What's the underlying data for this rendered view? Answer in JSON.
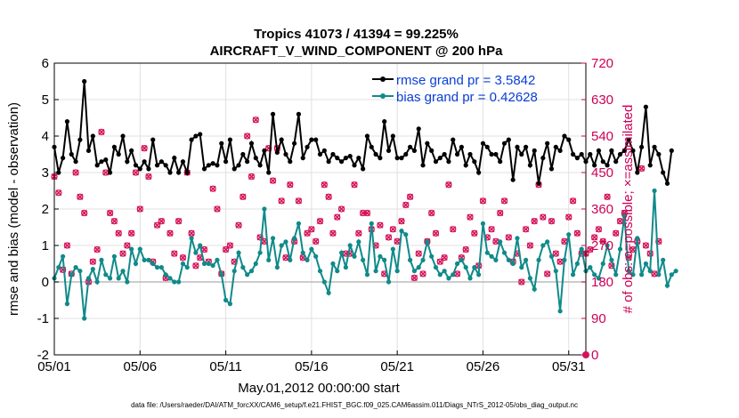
{
  "chart_data": {
    "type": "line",
    "title_line1": "Tropics 41073 / 41394 = 99.225%",
    "title_line2": "AIRCRAFT_V_WIND_COMPONENT @ 200 hPa",
    "xlabel": "May.01,2012 00:00:00 start",
    "ylabel": "rmse and bias (model - observation)",
    "ylabel_right": "# of obs: o=possible; ×=assimilated",
    "footnote": "data file: /Users/raeder/DAI/ATM_forcXX/CAM6_setup/f.e21.FHIST_BGC.f09_025.CAM6assim.011/Diags_NTrS_2012-05/obs_diag_output.nc",
    "x_range": [
      1,
      32
    ],
    "x_ticks": [
      1,
      6,
      11,
      16,
      21,
      26,
      31
    ],
    "x_tick_labels": [
      "05/01",
      "05/06",
      "05/11",
      "05/16",
      "05/21",
      "05/26",
      "05/31"
    ],
    "ylim": [
      -2,
      6
    ],
    "y_ticks": [
      -2,
      -1,
      0,
      1,
      2,
      3,
      4,
      5,
      6
    ],
    "y_tick_labels": [
      "-2",
      "-1",
      "0",
      "1",
      "2",
      "3",
      "4",
      "5",
      "6"
    ],
    "ylim_right": [
      0,
      720
    ],
    "y_ticks_right": [
      0,
      90,
      180,
      270,
      360,
      450,
      540,
      630,
      720
    ],
    "y_tick_labels_right": [
      "0",
      "90",
      "180",
      "270",
      "360",
      "450",
      "540",
      "630",
      "720"
    ],
    "series": [
      {
        "name": "rmse",
        "legend": "rmse grand pr = 3.5842",
        "color": "#000000",
        "step": 0.25,
        "start": 1.0,
        "values": [
          3.7,
          3.0,
          3.4,
          4.4,
          3.5,
          3.3,
          3.9,
          5.5,
          3.6,
          4.0,
          3.2,
          3.3,
          3.35,
          3.0,
          3.7,
          3.5,
          4.0,
          3.3,
          3.6,
          3.2,
          3.1,
          3.3,
          3.1,
          3.9,
          3.2,
          3.3,
          3.2,
          3.0,
          3.4,
          3.0,
          3.3,
          3.0,
          3.9,
          4.0,
          4.05,
          3.1,
          3.2,
          3.25,
          3.2,
          3.8,
          3.3,
          3.9,
          3.1,
          3.2,
          3.5,
          3.3,
          3.8,
          3.4,
          3.2,
          3.6,
          3.0,
          4.6,
          3.55,
          3.9,
          3.5,
          3.3,
          3.8,
          4.6,
          3.4,
          3.7,
          3.9,
          3.9,
          3.5,
          3.6,
          3.3,
          3.5,
          3.4,
          3.3,
          3.4,
          3.45,
          3.2,
          3.4,
          3.1,
          4.0,
          3.7,
          3.5,
          3.4,
          4.4,
          3.6,
          4.0,
          3.4,
          3.4,
          3.5,
          3.7,
          3.6,
          4.2,
          3.2,
          3.8,
          3.6,
          3.3,
          3.4,
          3.5,
          3.3,
          3.9,
          3.5,
          3.7,
          3.2,
          3.5,
          3.3,
          3.0,
          3.8,
          3.7,
          3.5,
          3.5,
          3.3,
          3.8,
          3.9,
          2.8,
          3.7,
          3.5,
          3.7,
          3.2,
          3.6,
          2.7,
          3.4,
          3.8,
          3.1,
          3.7,
          3.6,
          4.0,
          3.9,
          3.5,
          3.4,
          3.5,
          3.3,
          3.5,
          3.2,
          3.6,
          3.3,
          3.2,
          3.6,
          3.3,
          3.5,
          3.6,
          3.9,
          3.6,
          3.0,
          3.7,
          4.8,
          3.2,
          3.7,
          3.5,
          3.0,
          2.7,
          3.6
        ],
        "marker": "star"
      },
      {
        "name": "bias",
        "legend": "bias grand pr = 0.42628",
        "color": "#108a8a",
        "step": 0.25,
        "start": 1.0,
        "values": [
          0.1,
          0.4,
          0.7,
          -0.6,
          0.2,
          0.4,
          0.3,
          -1.0,
          0.1,
          0.35,
          0.0,
          0.6,
          0.2,
          0.1,
          0.7,
          0.1,
          0.3,
          0.0,
          0.9,
          0.5,
          0.9,
          0.6,
          0.6,
          0.5,
          0.4,
          0.4,
          0.2,
          0.1,
          0.0,
          0.0,
          0.5,
          0.4,
          1.2,
          0.8,
          1.0,
          0.5,
          0.5,
          0.45,
          0.6,
          0.2,
          -0.5,
          -0.6,
          0.3,
          0.8,
          0.4,
          0.2,
          0.3,
          0.5,
          0.8,
          2.0,
          0.6,
          1.2,
          0.4,
          1.0,
          1.1,
          0.6,
          1.2,
          1.6,
          0.8,
          0.6,
          0.9,
          0.7,
          0.3,
          0.0,
          -0.3,
          0.5,
          0.3,
          0.8,
          0.4,
          1.0,
          0.7,
          1.1,
          0.6,
          0.2,
          1.6,
          0.3,
          0.7,
          0.6,
          0.0,
          0.9,
          0.3,
          1.4,
          1.3,
          0.6,
          0.3,
          0.4,
          0.6,
          1.1,
          0.7,
          0.4,
          0.2,
          0.3,
          0.1,
          0.2,
          0.5,
          0.6,
          0.4,
          0.1,
          0.4,
          0.2,
          1.6,
          0.8,
          0.7,
          0.6,
          1.1,
          0.8,
          0.6,
          0.5,
          1.2,
          0.4,
          0.6,
          0.1,
          -0.2,
          0.6,
          1.0,
          1.1,
          0.7,
          0.3,
          -0.8,
          0.6,
          1.3,
          0.2,
          0.5,
          0.9,
          0.3,
          0.4,
          0.2,
          0.1,
          0.5,
          1.0,
          0.6,
          0.2,
          0.9,
          1.8,
          0.3,
          0.2,
          1.2,
          0.2,
          0.5,
          0.3,
          2.5,
          0.2,
          0.6,
          -0.1,
          0.2,
          0.3
        ],
        "marker": "circle"
      }
    ],
    "obs_possible": {
      "color": "#d4145a",
      "axis": "right",
      "values": [
        440,
        400,
        210,
        270,
        200,
        450,
        390,
        350,
        180,
        230,
        260,
        550,
        450,
        350,
        330,
        300,
        250,
        270,
        300,
        450,
        360,
        510,
        440,
        230,
        320,
        330,
        190,
        300,
        250,
        330,
        240,
        450,
        300,
        220,
        240,
        260,
        230,
        410,
        360,
        200,
        260,
        270,
        230,
        320,
        390,
        540,
        440,
        580,
        290,
        280,
        510,
        430,
        510,
        380,
        240,
        420,
        280,
        380,
        240,
        300,
        310,
        280,
        330,
        420,
        390,
        300,
        340,
        360,
        250,
        250,
        420,
        300,
        350,
        350,
        310,
        270,
        320,
        200,
        290,
        310,
        280,
        330,
        370,
        390,
        190,
        250,
        200,
        280,
        350,
        300,
        230,
        240,
        420,
        310,
        200,
        240,
        260,
        340,
        300,
        220,
        380,
        290,
        310,
        280,
        350,
        380,
        290,
        230,
        250,
        180,
        310,
        270,
        330,
        420,
        340,
        200,
        330,
        250,
        230,
        280,
        340,
        380,
        300,
        250,
        250,
        260,
        290,
        310,
        280,
        390,
        220,
        300,
        330,
        350,
        240,
        260,
        280,
        460,
        270,
        250,
        200,
        280
      ]
    },
    "obs_assimilated": {
      "color": "#d4145a",
      "axis": "right",
      "values": [
        440,
        400,
        210,
        270,
        200,
        450,
        390,
        350,
        180,
        230,
        260,
        550,
        450,
        350,
        330,
        300,
        250,
        270,
        300,
        450,
        360,
        510,
        440,
        230,
        320,
        330,
        190,
        300,
        250,
        330,
        240,
        450,
        300,
        220,
        240,
        260,
        230,
        410,
        360,
        200,
        260,
        270,
        230,
        320,
        390,
        540,
        440,
        580,
        290,
        280,
        510,
        430,
        510,
        380,
        240,
        420,
        280,
        380,
        240,
        300,
        310,
        280,
        330,
        420,
        390,
        300,
        340,
        360,
        250,
        250,
        420,
        300,
        350,
        350,
        310,
        270,
        320,
        200,
        290,
        310,
        280,
        330,
        370,
        390,
        190,
        250,
        200,
        280,
        350,
        300,
        230,
        240,
        420,
        310,
        200,
        240,
        260,
        340,
        300,
        220,
        380,
        290,
        310,
        280,
        350,
        380,
        290,
        230,
        250,
        180,
        310,
        270,
        330,
        420,
        340,
        200,
        330,
        250,
        230,
        280,
        340,
        380,
        300,
        250,
        250,
        260,
        290,
        310,
        280,
        390,
        220,
        300,
        330,
        350,
        240,
        260,
        280,
        460,
        270,
        250,
        200,
        280
      ]
    },
    "legend_position": "top-right",
    "grid": true
  }
}
